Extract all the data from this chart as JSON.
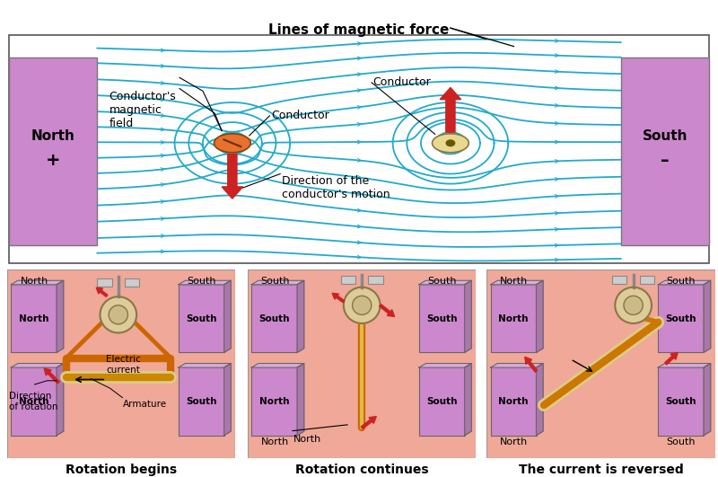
{
  "bg_color": "#ffffff",
  "magnet_color": "#cc88cc",
  "field_line_color": "#22aacc",
  "arrow_color": "#cc2222",
  "conductor1_color": "#e87030",
  "conductor2_color": "#e8d890",
  "bottom_panel_bg": "#f0a898",
  "title_top": "Lines of magnetic force",
  "sub_titles": [
    "Rotation begins",
    "Rotation continues",
    "The current is reversed"
  ],
  "c1x": 3.2,
  "c1y": 2.5,
  "c2x": 6.3,
  "c2y": 2.5
}
